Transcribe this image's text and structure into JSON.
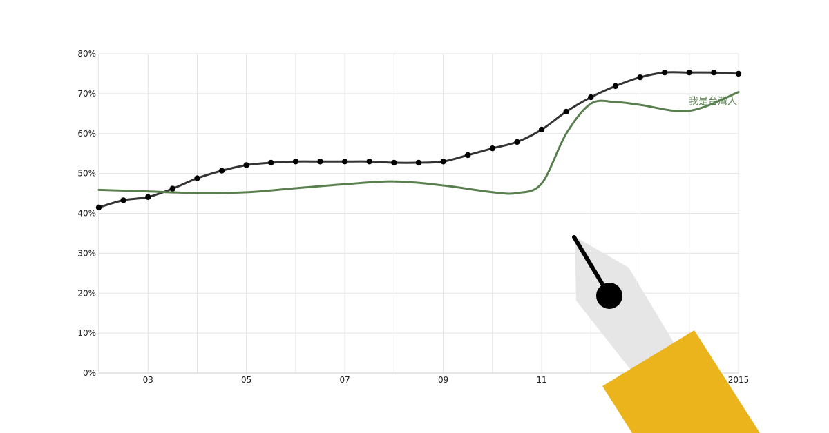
{
  "chart_data": {
    "type": "line",
    "title": "",
    "xlabel": "",
    "ylabel": "",
    "x_range": [
      2002,
      2015
    ],
    "ylim": [
      0,
      80
    ],
    "y_ticks": [
      0,
      10,
      20,
      30,
      40,
      50,
      60,
      70,
      80
    ],
    "y_tick_labels": [
      "0%",
      "10%",
      "20%",
      "30%",
      "40%",
      "50%",
      "60%",
      "70%",
      "80%"
    ],
    "x_ticks": [
      2003,
      2005,
      2007,
      2009,
      2011,
      2015
    ],
    "x_tick_labels": [
      "03",
      "05",
      "07",
      "09",
      "11",
      "2015"
    ],
    "grid": true,
    "series": [
      {
        "name": "",
        "color": "#333333",
        "markers": true,
        "points": [
          [
            2002.0,
            41.5
          ],
          [
            2002.5,
            43.3
          ],
          [
            2003.0,
            44.1
          ],
          [
            2003.5,
            46.2
          ],
          [
            2004.0,
            48.8
          ],
          [
            2004.5,
            50.7
          ],
          [
            2005.0,
            52.1
          ],
          [
            2005.5,
            52.7
          ],
          [
            2006.0,
            53.0
          ],
          [
            2006.5,
            53.0
          ],
          [
            2007.0,
            53.0
          ],
          [
            2007.5,
            53.0
          ],
          [
            2008.0,
            52.7
          ],
          [
            2008.5,
            52.7
          ],
          [
            2009.0,
            53.0
          ],
          [
            2009.5,
            54.6
          ],
          [
            2010.0,
            56.3
          ],
          [
            2010.5,
            57.9
          ],
          [
            2011.0,
            61.0
          ],
          [
            2011.5,
            65.5
          ],
          [
            2012.0,
            69.1
          ],
          [
            2012.5,
            71.9
          ],
          [
            2013.0,
            74.1
          ],
          [
            2013.5,
            75.3
          ],
          [
            2014.0,
            75.3
          ],
          [
            2014.5,
            75.3
          ],
          [
            2015.0,
            75.0
          ]
        ]
      },
      {
        "name": "我是台灣人",
        "color": "#5a7f4f",
        "markers": false,
        "points": [
          [
            2002.0,
            45.9
          ],
          [
            2003.0,
            45.5
          ],
          [
            2004.0,
            45.1
          ],
          [
            2005.0,
            45.3
          ],
          [
            2006.0,
            46.3
          ],
          [
            2007.0,
            47.3
          ],
          [
            2008.0,
            48.0
          ],
          [
            2009.0,
            47.0
          ],
          [
            2010.0,
            45.3
          ],
          [
            2010.5,
            45.1
          ],
          [
            2011.0,
            47.5
          ],
          [
            2011.5,
            60.0
          ],
          [
            2012.0,
            67.5
          ],
          [
            2012.5,
            67.9
          ],
          [
            2013.0,
            67.2
          ],
          [
            2014.0,
            65.7
          ],
          [
            2015.0,
            70.4
          ]
        ]
      }
    ]
  }
}
